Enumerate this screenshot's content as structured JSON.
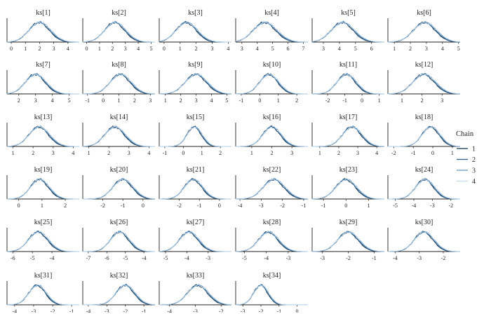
{
  "chart_data": {
    "type": "density",
    "legend": {
      "title": "Chain",
      "position": "right",
      "entries": [
        "1",
        "2",
        "3",
        "4"
      ],
      "colors": [
        "#1b3a57",
        "#2e5f87",
        "#6a9bc6",
        "#c6dbef"
      ]
    },
    "panels": [
      {
        "title": "ks[1]",
        "xlim": [
          -0.3,
          4.8
        ],
        "ticks": [
          "0",
          "1",
          "2",
          "3",
          "4"
        ],
        "tick_values": [
          0,
          1,
          2,
          3,
          4
        ],
        "mean": 2.0,
        "sd": 0.75
      },
      {
        "title": "ks[2]",
        "xlim": [
          -0.3,
          5.3
        ],
        "ticks": [
          "0",
          "1",
          "2",
          "3",
          "4",
          "5"
        ],
        "tick_values": [
          0,
          1,
          2,
          3,
          4,
          5
        ],
        "mean": 2.2,
        "sd": 0.8
      },
      {
        "title": "ks[3]",
        "xlim": [
          -0.3,
          4.2
        ],
        "ticks": [
          "0",
          "1",
          "2",
          "3",
          "4"
        ],
        "tick_values": [
          0,
          1,
          2,
          3,
          4
        ],
        "mean": 1.4,
        "sd": 0.65
      },
      {
        "title": "ks[4]",
        "xlim": [
          2.6,
          7.3
        ],
        "ticks": [
          "3",
          "4",
          "5",
          "6",
          "7"
        ],
        "tick_values": [
          3,
          4,
          5,
          6,
          7
        ],
        "mean": 4.5,
        "sd": 0.75
      },
      {
        "title": "ks[5]",
        "xlim": [
          2.3,
          6.8
        ],
        "ticks": [
          "3",
          "4",
          "5",
          "6"
        ],
        "tick_values": [
          3,
          4,
          5,
          6
        ],
        "mean": 4.2,
        "sd": 0.7
      },
      {
        "title": "ks[6]",
        "xlim": [
          0.6,
          5.1
        ],
        "ticks": [
          "1",
          "2",
          "3",
          "4",
          "5"
        ],
        "tick_values": [
          1,
          2,
          3,
          4,
          5
        ],
        "mean": 2.9,
        "sd": 0.7
      },
      {
        "title": "ks[7]",
        "xlim": [
          1.3,
          5.6
        ],
        "ticks": [
          "2",
          "3",
          "4",
          "5"
        ],
        "tick_values": [
          2,
          3,
          4,
          5
        ],
        "mean": 3.0,
        "sd": 0.6
      },
      {
        "title": "ks[8]",
        "xlim": [
          -1.3,
          3.3
        ],
        "ticks": [
          "-1",
          "0",
          "1",
          "2",
          "3"
        ],
        "tick_values": [
          -1,
          0,
          1,
          2,
          3
        ],
        "mean": 1.1,
        "sd": 0.65
      },
      {
        "title": "ks[9]",
        "xlim": [
          0.6,
          5.3
        ],
        "ticks": [
          "1",
          "2",
          "3",
          "4",
          "5"
        ],
        "tick_values": [
          1,
          2,
          3,
          4,
          5
        ],
        "mean": 3.0,
        "sd": 0.7
      },
      {
        "title": "ks[10]",
        "xlim": [
          -1.3,
          2.6
        ],
        "ticks": [
          "-1",
          "0",
          "1",
          "2"
        ],
        "tick_values": [
          -1,
          0,
          1,
          2
        ],
        "mean": 0.5,
        "sd": 0.5
      },
      {
        "title": "ks[11]",
        "xlim": [
          -2.9,
          1.3
        ],
        "ticks": [
          "-2",
          "-1",
          "0",
          "1"
        ],
        "tick_values": [
          -2,
          -1,
          0,
          1
        ],
        "mean": -0.9,
        "sd": 0.55
      },
      {
        "title": "ks[12]",
        "xlim": [
          0.3,
          3.9
        ],
        "ticks": [
          "1",
          "2",
          "3"
        ],
        "tick_values": [
          1,
          2,
          3
        ],
        "mean": 2.1,
        "sd": 0.55
      },
      {
        "title": "ks[13]",
        "xlim": [
          0.7,
          4.3
        ],
        "ticks": [
          "1",
          "2",
          "3",
          "4"
        ],
        "tick_values": [
          1,
          2,
          3,
          4
        ],
        "mean": 2.3,
        "sd": 0.5
      },
      {
        "title": "ks[14]",
        "xlim": [
          0.7,
          4.3
        ],
        "ticks": [
          "1",
          "2",
          "3",
          "4"
        ],
        "tick_values": [
          1,
          2,
          3,
          4
        ],
        "mean": 2.3,
        "sd": 0.5
      },
      {
        "title": "ks[15]",
        "xlim": [
          -1.3,
          2.6
        ],
        "ticks": [
          "-1",
          "0",
          "1",
          "2"
        ],
        "tick_values": [
          -1,
          0,
          1,
          2
        ],
        "mean": 0.6,
        "sd": 0.4
      },
      {
        "title": "ks[16]",
        "xlim": [
          0.2,
          3.8
        ],
        "ticks": [
          "1",
          "2",
          "3"
        ],
        "tick_values": [
          1,
          2,
          3
        ],
        "mean": 2.0,
        "sd": 0.45
      },
      {
        "title": "ks[17]",
        "xlim": [
          0.6,
          4.4
        ],
        "ticks": [
          "1",
          "2",
          "3",
          "4"
        ],
        "tick_values": [
          1,
          2,
          3,
          4
        ],
        "mean": 2.7,
        "sd": 0.5
      },
      {
        "title": "ks[18]",
        "xlim": [
          -2.3,
          1.4
        ],
        "ticks": [
          "-2",
          "-1",
          "0",
          "1"
        ],
        "tick_values": [
          -2,
          -1,
          0,
          1
        ],
        "mean": -0.1,
        "sd": 0.45
      },
      {
        "title": "ks[19]",
        "xlim": [
          -0.5,
          2.6
        ],
        "ticks": [
          "0",
          "1",
          "2"
        ],
        "tick_values": [
          0,
          1,
          2
        ],
        "mean": 0.9,
        "sd": 0.4
      },
      {
        "title": "ks[20]",
        "xlim": [
          -3.0,
          0.6
        ],
        "ticks": [
          "-2",
          "-1",
          "0"
        ],
        "tick_values": [
          -2,
          -1,
          0
        ],
        "mean": -1.0,
        "sd": 0.5
      },
      {
        "title": "ks[21]",
        "xlim": [
          -3.0,
          0.6
        ],
        "ticks": [
          "-2",
          "-1",
          "0"
        ],
        "tick_values": [
          -2,
          -1,
          0
        ],
        "mean": -1.3,
        "sd": 0.45
      },
      {
        "title": "ks[22]",
        "xlim": [
          -4.2,
          -0.8
        ],
        "ticks": [
          "-4",
          "-3",
          "-2",
          "-1"
        ],
        "tick_values": [
          -4,
          -3,
          -2,
          -1
        ],
        "mean": -2.4,
        "sd": 0.5
      },
      {
        "title": "ks[23]",
        "xlim": [
          -1.5,
          1.7
        ],
        "ticks": [
          "-1",
          "0",
          "1"
        ],
        "tick_values": [
          -1,
          0,
          1
        ],
        "mean": 0.0,
        "sd": 0.45
      },
      {
        "title": "ks[24]",
        "xlim": [
          -5.4,
          -1.5
        ],
        "ticks": [
          "-5",
          "-4",
          "-3",
          "-2"
        ],
        "tick_values": [
          -5,
          -4,
          -3,
          -2
        ],
        "mean": -3.4,
        "sd": 0.5
      },
      {
        "title": "ks[25]",
        "xlim": [
          -6.3,
          -2.6
        ],
        "ticks": [
          "-6",
          "-5",
          "-4"
        ],
        "tick_values": [
          -6,
          -5,
          -4
        ],
        "mean": -4.7,
        "sd": 0.5
      },
      {
        "title": "ks[26]",
        "xlim": [
          -7.3,
          -3.4
        ],
        "ticks": [
          "-7",
          "-6",
          "-5",
          "-4"
        ],
        "tick_values": [
          -7,
          -6,
          -5,
          -4
        ],
        "mean": -5.3,
        "sd": 0.5
      },
      {
        "title": "ks[27]",
        "xlim": [
          -5.3,
          -1.9
        ],
        "ticks": [
          "-5",
          "-4",
          "-3"
        ],
        "tick_values": [
          -5,
          -4,
          -3
        ],
        "mean": -3.9,
        "sd": 0.45
      },
      {
        "title": "ks[28]",
        "xlim": [
          -5.4,
          -2.1
        ],
        "ticks": [
          "-5",
          "-4",
          "-3"
        ],
        "tick_values": [
          -5,
          -4,
          -3
        ],
        "mean": -3.9,
        "sd": 0.45
      },
      {
        "title": "ks[29]",
        "xlim": [
          -3.4,
          -0.6
        ],
        "ticks": [
          "-3",
          "-2",
          "-1"
        ],
        "tick_values": [
          -3,
          -2,
          -1
        ],
        "mean": -2.0,
        "sd": 0.4
      },
      {
        "title": "ks[30]",
        "xlim": [
          -4.3,
          -1.3
        ],
        "ticks": [
          "-4",
          "-3",
          "-2"
        ],
        "tick_values": [
          -4,
          -3,
          -2
        ],
        "mean": -2.8,
        "sd": 0.4
      },
      {
        "title": "ks[31]",
        "xlim": [
          -4.4,
          -0.6
        ],
        "ticks": [
          "-4",
          "-3",
          "-2",
          "-1"
        ],
        "tick_values": [
          -4,
          -3,
          -2,
          -1
        ],
        "mean": -2.8,
        "sd": 0.45
      },
      {
        "title": "ks[32]",
        "xlim": [
          -4.3,
          -0.4
        ],
        "ticks": [
          "-4",
          "-3",
          "-2",
          "-1"
        ],
        "tick_values": [
          -4,
          -3,
          -2,
          -1
        ],
        "mean": -2.0,
        "sd": 0.5
      },
      {
        "title": "ks[33]",
        "xlim": [
          -4.4,
          -1.6
        ],
        "ticks": [
          "-4",
          "-3",
          "-2"
        ],
        "tick_values": [
          -4,
          -3,
          -2
        ],
        "mean": -2.9,
        "sd": 0.4
      },
      {
        "title": "ks[34]",
        "xlim": [
          -3.4,
          0.6
        ],
        "ticks": [
          "-3",
          "-2",
          "-1",
          "0"
        ],
        "tick_values": [
          -3,
          -2,
          -1,
          0
        ],
        "mean": -2.0,
        "sd": 0.4
      }
    ]
  }
}
